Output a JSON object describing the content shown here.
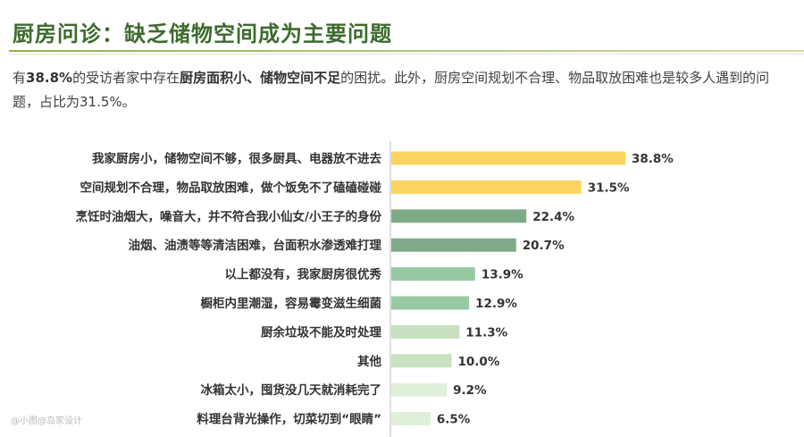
{
  "page": {
    "title": "厨房问诊：缺乏储物空间成为主要问题",
    "intro": {
      "p1": "有",
      "b1": "38.8%",
      "p2": "的受访者家中存在",
      "b2": "厨房面积小、储物空间不足",
      "p3": "的困扰。此外，厨房空间规划不合理、物品取放困难也是较多人遇到的问题，占比为31.5%。"
    },
    "watermark": "@小图@岛家设计"
  },
  "colors": {
    "yellow": "#fbd45f",
    "dark_green": "#7faa88",
    "mid_green": "#97c9a3",
    "light_green": "#c8e1c0",
    "pale_green": "#e0efda",
    "axis": "#bdbdbd"
  },
  "chart_data": {
    "type": "bar",
    "orientation": "horizontal",
    "categories": [
      "我家厨房小，储物空间不够，很多厨具、电器放不进去",
      "空间规划不合理，物品取放困难，做个饭免不了磕磕碰碰",
      "烹饪时油烟大，噪音大，并不符合我小仙女/小王子的身份",
      "油烟、油渍等等清洁困难，台面积水渗透难打理",
      "以上都没有，我家厨房很优秀",
      "橱柜内里潮湿，容易霉变滋生细菌",
      "厨余垃圾不能及时处理",
      "其他",
      "冰箱太小，囤货没几天就消耗完了",
      "料理台背光操作，切菜切到“眼睛”"
    ],
    "values": [
      38.8,
      31.5,
      22.4,
      20.7,
      13.9,
      12.9,
      11.3,
      10.0,
      9.2,
      6.5
    ],
    "labels": [
      "38.8%",
      "31.5%",
      "22.4%",
      "20.7%",
      "13.9%",
      "12.9%",
      "11.3%",
      "10.0%",
      "9.2%",
      "6.5%"
    ],
    "bar_colors": [
      "yellow",
      "yellow",
      "dark_green",
      "dark_green",
      "mid_green",
      "mid_green",
      "light_green",
      "light_green",
      "pale_green",
      "pale_green"
    ],
    "xlim": [
      0,
      40
    ],
    "grid": false,
    "legend": "none"
  }
}
